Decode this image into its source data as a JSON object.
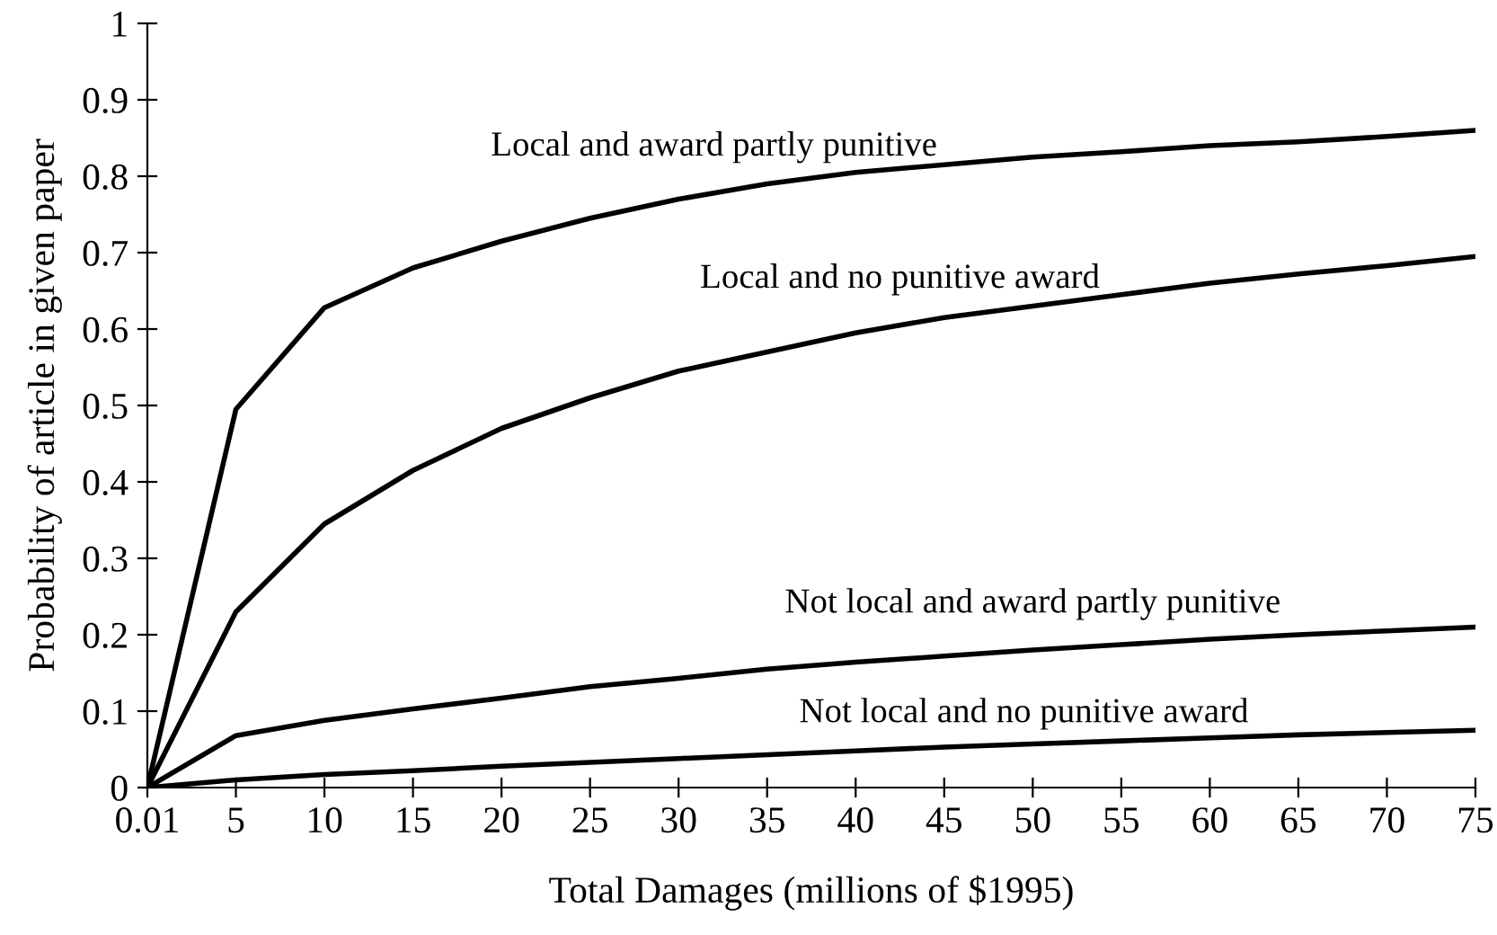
{
  "chart_data": {
    "type": "line",
    "xlabel": "Total Damages (millions of $1995)",
    "ylabel": "Probability of article in given paper",
    "categories": [
      "0.01",
      "5",
      "10",
      "15",
      "20",
      "25",
      "30",
      "35",
      "40",
      "45",
      "50",
      "55",
      "60",
      "65",
      "70",
      "75"
    ],
    "series": [
      {
        "name": "Local and award partly punitive",
        "color": "#000000",
        "values": [
          0,
          0.495,
          0.628,
          0.68,
          0.715,
          0.745,
          0.77,
          0.79,
          0.805,
          0.815,
          0.825,
          0.832,
          0.84,
          0.845,
          0.852,
          0.86
        ]
      },
      {
        "name": "Local and no punitive award",
        "color": "#000000",
        "values": [
          0,
          0.23,
          0.345,
          0.415,
          0.47,
          0.51,
          0.545,
          0.57,
          0.595,
          0.615,
          0.63,
          0.645,
          0.66,
          0.672,
          0.683,
          0.695
        ]
      },
      {
        "name": "Not local and award partly punitive",
        "color": "#000000",
        "values": [
          0,
          0.068,
          0.088,
          0.103,
          0.117,
          0.132,
          0.143,
          0.155,
          0.164,
          0.172,
          0.18,
          0.187,
          0.194,
          0.2,
          0.205,
          0.21
        ]
      },
      {
        "name": "Not local and no punitive award",
        "color": "#000000",
        "values": [
          0,
          0.01,
          0.017,
          0.022,
          0.028,
          0.033,
          0.038,
          0.043,
          0.048,
          0.053,
          0.057,
          0.061,
          0.065,
          0.069,
          0.072,
          0.075
        ]
      }
    ],
    "ylim": [
      0,
      1
    ],
    "yticks": [
      0,
      0.1,
      0.2,
      0.3,
      0.4,
      0.5,
      0.6,
      0.7,
      0.8,
      0.9,
      1
    ],
    "grid": false,
    "legend": false,
    "marker": "none",
    "line_style": "solid"
  }
}
